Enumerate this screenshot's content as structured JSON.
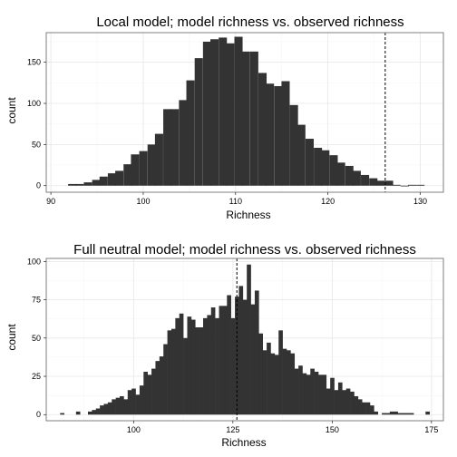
{
  "chart_data": [
    {
      "type": "bar",
      "title": "Local model; model richness vs. observed richness",
      "xlabel": "Richness",
      "ylabel": "count",
      "xlim": [
        89.5,
        132.5
      ],
      "ylim": [
        -8,
        186
      ],
      "xticks": [
        90,
        100,
        110,
        120,
        130
      ],
      "yticks": [
        0,
        50,
        100,
        150
      ],
      "xtick_labels": [
        "90",
        "100",
        "110",
        "120",
        "130"
      ],
      "ytick_labels": [
        "0",
        "50",
        "100",
        "150"
      ],
      "grid": true,
      "bin_width": 0.86,
      "observed_richness": 126.2,
      "x": [
        92.3,
        93.1,
        94.0,
        94.9,
        95.7,
        96.6,
        97.4,
        98.3,
        99.1,
        100.0,
        100.9,
        101.7,
        102.6,
        103.4,
        104.3,
        105.1,
        106.0,
        106.9,
        107.7,
        108.6,
        109.4,
        110.3,
        111.1,
        112.0,
        112.9,
        113.7,
        114.6,
        115.4,
        116.3,
        117.1,
        118.0,
        118.9,
        119.7,
        120.6,
        121.4,
        122.3,
        123.1,
        124.0,
        124.9,
        125.7,
        126.6,
        127.4,
        128.3,
        129.1,
        130.0
      ],
      "values": [
        2,
        2,
        4,
        7,
        11,
        15,
        18,
        26,
        38,
        42,
        50,
        63,
        93,
        93,
        104,
        128,
        155,
        175,
        178,
        180,
        173,
        181,
        163,
        163,
        137,
        124,
        121,
        127,
        98,
        74,
        57,
        46,
        43,
        37,
        28,
        24,
        18,
        13,
        9,
        6,
        6,
        1,
        0,
        1,
        1
      ]
    },
    {
      "type": "bar",
      "title": "Full neutral model; model richness vs. observed richness",
      "xlabel": "Richness",
      "ylabel": "count",
      "xlim": [
        78,
        178
      ],
      "ylim": [
        -4,
        102
      ],
      "xticks": [
        100,
        125,
        150,
        175
      ],
      "yticks": [
        0,
        25,
        50,
        75,
        100
      ],
      "xtick_labels": [
        "100",
        "125",
        "150",
        "175"
      ],
      "ytick_labels": [
        "0",
        "25",
        "50",
        "75",
        "100"
      ],
      "grid": true,
      "bin_width": 1,
      "observed_richness": 126.0,
      "x": [
        82,
        86,
        89,
        90,
        91,
        92,
        93,
        94,
        95,
        96,
        97,
        98,
        99,
        100,
        101,
        102,
        103,
        104,
        105,
        106,
        107,
        108,
        109,
        110,
        111,
        112,
        113,
        114,
        115,
        116,
        117,
        118,
        119,
        120,
        121,
        122,
        123,
        124,
        125,
        126,
        127,
        128,
        129,
        130,
        131,
        132,
        133,
        134,
        135,
        136,
        137,
        138,
        139,
        140,
        141,
        142,
        143,
        144,
        145,
        146,
        147,
        148,
        149,
        150,
        151,
        152,
        153,
        154,
        155,
        156,
        157,
        158,
        159,
        160,
        161,
        163,
        164,
        165,
        166,
        167,
        168,
        169,
        170,
        174
      ],
      "values": [
        1,
        2,
        2,
        3,
        4,
        6,
        7,
        8,
        10,
        11,
        12,
        10,
        16,
        17,
        13,
        19,
        28,
        26,
        30,
        35,
        38,
        46,
        55,
        56,
        63,
        66,
        50,
        64,
        62,
        57,
        57,
        63,
        65,
        70,
        63,
        71,
        71,
        78,
        63,
        77,
        84,
        75,
        98,
        72,
        81,
        53,
        42,
        47,
        40,
        39,
        55,
        43,
        42,
        40,
        30,
        32,
        27,
        26,
        30,
        28,
        26,
        26,
        17,
        24,
        16,
        21,
        16,
        17,
        15,
        12,
        10,
        8,
        8,
        6,
        2,
        1,
        1,
        2,
        2,
        1,
        1,
        1,
        1,
        2
      ]
    }
  ]
}
